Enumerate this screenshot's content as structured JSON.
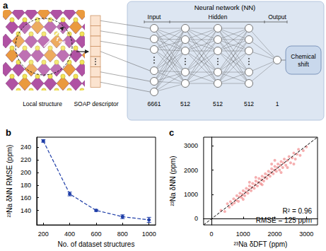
{
  "chart_data": [
    {
      "type": "line",
      "title": "b",
      "x_label": "No. of dataset structures",
      "y_label": "²³Na δNN RMSE (ppm)",
      "x": [
        200,
        400,
        600,
        800,
        1000
      ],
      "values": [
        250,
        166,
        140,
        130,
        125
      ],
      "errors": [
        2,
        3,
        1.5,
        3,
        4
      ],
      "color": "#1f3ea8",
      "marker": "circle",
      "line_style": "dashed",
      "xlim": [
        150,
        1050
      ],
      "xticks": [
        200,
        400,
        600,
        800,
        1000
      ],
      "ylim": [
        117,
        256
      ],
      "yticks": [
        140,
        160,
        180,
        200,
        220,
        240
      ],
      "grid": false
    },
    {
      "type": "scatter",
      "title": "c",
      "x_label": "²³Na δDFT (ppm)",
      "y_label": "²³Na δNN (ppm)",
      "series": [
        {
          "type": "scatter",
          "color": "#e31a1c",
          "marker": "circle",
          "x": [
            300,
            420,
            500,
            560,
            600,
            650,
            700,
            720,
            780,
            800,
            850,
            880,
            900,
            950,
            980,
            1000,
            1050,
            1080,
            1100,
            1150,
            1180,
            1200,
            1250,
            1280,
            1300,
            1350,
            1380,
            1400,
            1450,
            1480,
            1500,
            1550,
            1580,
            1600,
            1650,
            1680,
            1700,
            1750,
            1780,
            1800,
            1850,
            1880,
            1900,
            1950,
            1980,
            2000,
            2050,
            2080,
            2100,
            2150,
            2180,
            2200,
            2250,
            2280,
            2300,
            2350,
            2400,
            2450,
            2500,
            2550,
            2600,
            2650,
            2700,
            2750,
            2800,
            2900,
            3000,
            2200,
            1900,
            1600,
            1400,
            1000,
            2400,
            2600,
            1200,
            2000
          ],
          "values": [
            350,
            300,
            620,
            480,
            700,
            580,
            820,
            650,
            760,
            950,
            720,
            900,
            1050,
            880,
            1000,
            1150,
            950,
            1100,
            1250,
            1050,
            1200,
            1350,
            1150,
            1300,
            1450,
            1250,
            1400,
            1550,
            1350,
            1500,
            1650,
            1450,
            1600,
            1750,
            1550,
            1700,
            1850,
            1650,
            1800,
            1950,
            1750,
            1900,
            2050,
            1850,
            2000,
            2150,
            1950,
            2100,
            2250,
            2000,
            2200,
            2350,
            2100,
            2300,
            2450,
            2200,
            2400,
            2550,
            2300,
            2500,
            2700,
            2450,
            2650,
            2850,
            2600,
            2800,
            2950,
            1900,
            2250,
            1400,
            1700,
            800,
            2100,
            2250,
            1500,
            2400
          ]
        },
        {
          "type": "line",
          "color": "#000000",
          "line_style": "dashed",
          "x": [
            -250,
            3350
          ],
          "values": [
            -250,
            3350
          ]
        }
      ],
      "annotations": [
        "R² = 0.96",
        "RMSE = 125 ppm"
      ],
      "xlim": [
        -250,
        3350
      ],
      "xticks": [
        0,
        1000,
        2000,
        3000
      ],
      "ylim": [
        -250,
        3350
      ],
      "yticks": [
        0,
        1000,
        2000,
        3000
      ],
      "grid": false
    }
  ],
  "diagram": {
    "label": "a",
    "local_structure": {
      "caption": "Local structure",
      "radius": {
        "symbol": "r",
        "subscript": "cut"
      }
    },
    "descriptor": {
      "caption": "SOAP descriptor"
    },
    "network": {
      "title": "Neural network (NN)",
      "sections": {
        "input": "Input",
        "hidden": "Hidden",
        "output": "Output"
      },
      "layers": [
        6661,
        512,
        512,
        512,
        1
      ],
      "result": "Chemical shift"
    }
  }
}
